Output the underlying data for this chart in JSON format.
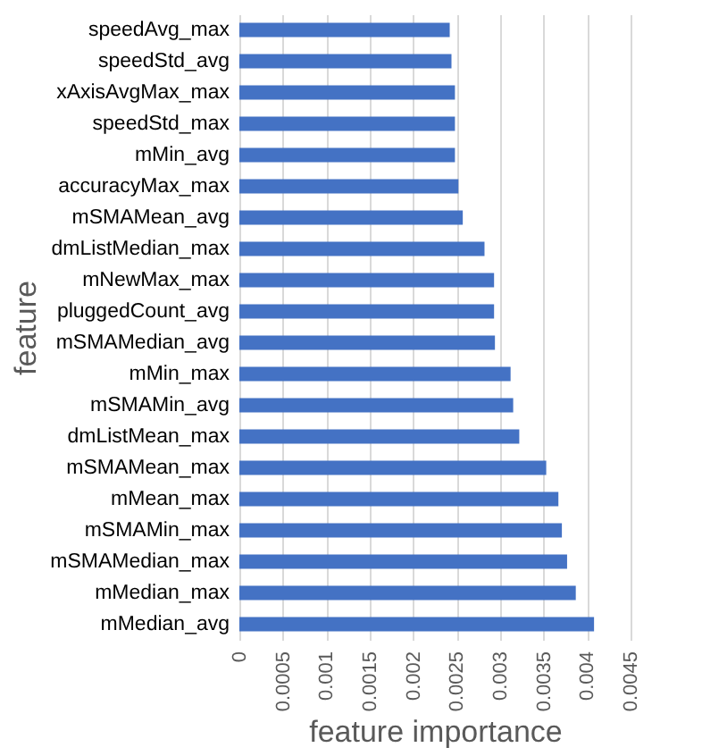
{
  "chart_data": {
    "type": "bar",
    "orientation": "horizontal",
    "xlabel": "feature importance",
    "ylabel": "feature",
    "categories": [
      "speedAvg_max",
      "speedStd_avg",
      "xAxisAvgMax_max",
      "speedStd_max",
      "mMin_avg",
      "accuracyMax_max",
      "mSMAMean_avg",
      "dmListMedian_max",
      "mNewMax_max",
      "pluggedCount_avg",
      "mSMAMedian_avg",
      "mMin_max",
      "mSMAMin_avg",
      "dmListMean_max",
      "mSMAMean_max",
      "mMean_max",
      "mSMAMin_max",
      "mSMAMedian_max",
      "mMedian_max",
      "mMedian_avg"
    ],
    "values": [
      0.00242,
      0.00244,
      0.00248,
      0.00248,
      0.00248,
      0.00252,
      0.00257,
      0.00282,
      0.00293,
      0.00293,
      0.00294,
      0.00312,
      0.00315,
      0.00322,
      0.00353,
      0.00367,
      0.00371,
      0.00377,
      0.00387,
      0.00408
    ],
    "color": "#4472c4",
    "xlim": [
      0,
      0.0045
    ],
    "xticks": [
      0,
      0.0005,
      0.001,
      0.0015,
      0.002,
      0.0025,
      0.003,
      0.0035,
      0.004,
      0.0045
    ],
    "grid": "x"
  }
}
